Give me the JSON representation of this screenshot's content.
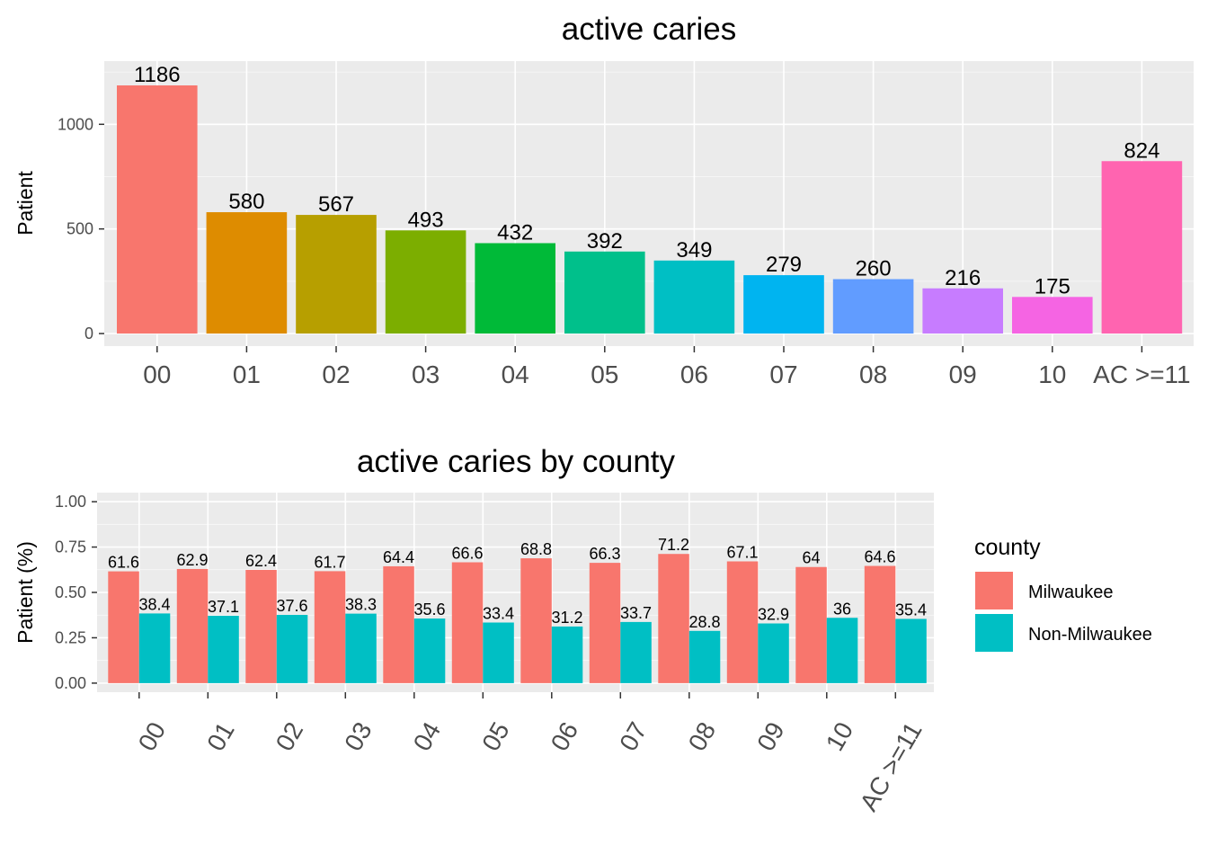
{
  "chart_data": [
    {
      "type": "bar",
      "title": "active caries",
      "xlabel": "",
      "ylabel": "Patient",
      "categories": [
        "00",
        "01",
        "02",
        "03",
        "04",
        "05",
        "06",
        "07",
        "08",
        "09",
        "10",
        "AC >=11"
      ],
      "values": [
        1186,
        580,
        567,
        493,
        432,
        392,
        349,
        279,
        260,
        216,
        175,
        824
      ],
      "data_labels": [
        "1186",
        "580",
        "567",
        "493",
        "432",
        "392",
        "349",
        "279",
        "260",
        "216",
        "175",
        "824"
      ],
      "bar_colors": [
        "#F8766D",
        "#DE8C00",
        "#B79F00",
        "#7CAE00",
        "#00BA38",
        "#00C08B",
        "#00BFC4",
        "#00B4F0",
        "#619CFF",
        "#C77CFF",
        "#F564E3",
        "#FF64B0"
      ],
      "ylim": [
        -60,
        1302
      ],
      "yticks": [
        0,
        500,
        1000
      ],
      "ytick_labels": [
        "0",
        "500",
        "1000"
      ],
      "grid": true,
      "legend": "none"
    },
    {
      "type": "bar",
      "title": "active caries by county",
      "xlabel": "",
      "ylabel": "Patient (%)",
      "categories": [
        "00",
        "01",
        "02",
        "03",
        "04",
        "05",
        "06",
        "07",
        "08",
        "09",
        "10",
        "AC >=11"
      ],
      "series": [
        {
          "name": "Milwaukee",
          "color": "#F8766D",
          "values": [
            0.616,
            0.629,
            0.624,
            0.617,
            0.644,
            0.666,
            0.688,
            0.663,
            0.712,
            0.671,
            0.64,
            0.646
          ],
          "data_labels": [
            "61.6",
            "62.9",
            "62.4",
            "61.7",
            "64.4",
            "66.6",
            "68.8",
            "66.3",
            "71.2",
            "67.1",
            "64",
            "64.6"
          ]
        },
        {
          "name": "Non-Milwaukee",
          "color": "#00BFC4",
          "values": [
            0.384,
            0.371,
            0.376,
            0.383,
            0.356,
            0.334,
            0.312,
            0.337,
            0.288,
            0.329,
            0.36,
            0.354
          ],
          "data_labels": [
            "38.4",
            "37.1",
            "37.6",
            "38.3",
            "35.6",
            "33.4",
            "31.2",
            "33.7",
            "28.8",
            "32.9",
            "36",
            "35.4"
          ]
        }
      ],
      "ylim": [
        -0.05,
        1.05
      ],
      "yticks": [
        0,
        0.25,
        0.5,
        0.75,
        1.0
      ],
      "ytick_labels": [
        "0.00",
        "0.25",
        "0.50",
        "0.75",
        "1.00"
      ],
      "grid": true,
      "legend": "right",
      "legend_title": "county",
      "x_tick_rotation_deg": 60
    }
  ],
  "style": {
    "panel_bg": "#EBEBEB",
    "grid_major": "#FFFFFF",
    "axis_text": "#4D4D4D",
    "label_text": "#000000"
  }
}
